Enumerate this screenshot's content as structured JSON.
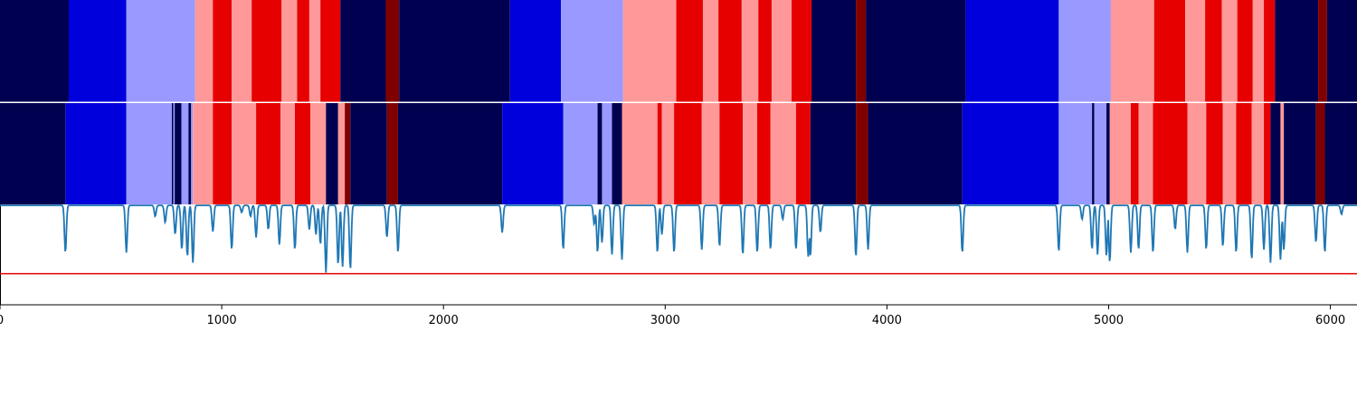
{
  "chart_data": {
    "type": "heatmap",
    "title": "",
    "xlabel": "",
    "ylabel": "",
    "xlim": [
      0,
      6120
    ],
    "x_ticks": [
      0,
      1000,
      2000,
      3000,
      4000,
      5000,
      6000
    ],
    "x_tick_labels": [
      "0",
      "1000",
      "2000",
      "3000",
      "4000",
      "5000",
      "6000"
    ],
    "grid": false,
    "legend": "none",
    "state_colors": {
      "0": "#000050",
      "1": "#0000dd",
      "2": "#9999ff",
      "3": "#ff9999",
      "4": "#e60000",
      "5": "#800000"
    },
    "track_1_segments": [
      [
        0,
        310,
        0
      ],
      [
        310,
        570,
        1
      ],
      [
        570,
        880,
        2
      ],
      [
        880,
        960,
        3
      ],
      [
        960,
        1045,
        4
      ],
      [
        1045,
        1135,
        3
      ],
      [
        1135,
        1270,
        4
      ],
      [
        1270,
        1340,
        3
      ],
      [
        1340,
        1395,
        4
      ],
      [
        1395,
        1445,
        3
      ],
      [
        1445,
        1535,
        4
      ],
      [
        1535,
        1740,
        0
      ],
      [
        1740,
        1800,
        5
      ],
      [
        1800,
        2300,
        0
      ],
      [
        2300,
        2530,
        1
      ],
      [
        2530,
        2810,
        2
      ],
      [
        2810,
        3050,
        3
      ],
      [
        3050,
        3170,
        4
      ],
      [
        3170,
        3240,
        3
      ],
      [
        3240,
        3345,
        4
      ],
      [
        3345,
        3420,
        3
      ],
      [
        3420,
        3480,
        4
      ],
      [
        3480,
        3570,
        3
      ],
      [
        3570,
        3660,
        4
      ],
      [
        3660,
        3860,
        0
      ],
      [
        3860,
        3905,
        5
      ],
      [
        3905,
        4355,
        0
      ],
      [
        4355,
        4775,
        1
      ],
      [
        4775,
        5010,
        2
      ],
      [
        5010,
        5205,
        3
      ],
      [
        5205,
        5345,
        4
      ],
      [
        5345,
        5435,
        3
      ],
      [
        5435,
        5510,
        4
      ],
      [
        5510,
        5580,
        3
      ],
      [
        5580,
        5650,
        4
      ],
      [
        5650,
        5700,
        3
      ],
      [
        5700,
        5750,
        4
      ],
      [
        5750,
        5945,
        0
      ],
      [
        5945,
        5985,
        5
      ],
      [
        5985,
        6120,
        0
      ]
    ],
    "track_2_segments": [
      [
        0,
        295,
        0
      ],
      [
        295,
        570,
        1
      ],
      [
        570,
        775,
        2
      ],
      [
        775,
        782,
        0
      ],
      [
        782,
        788,
        2
      ],
      [
        788,
        818,
        0
      ],
      [
        818,
        850,
        2
      ],
      [
        850,
        862,
        0
      ],
      [
        862,
        870,
        2
      ],
      [
        870,
        960,
        3
      ],
      [
        960,
        1045,
        4
      ],
      [
        1045,
        1155,
        3
      ],
      [
        1155,
        1265,
        4
      ],
      [
        1265,
        1330,
        3
      ],
      [
        1330,
        1400,
        4
      ],
      [
        1400,
        1470,
        3
      ],
      [
        1470,
        1525,
        0
      ],
      [
        1525,
        1555,
        3
      ],
      [
        1555,
        1580,
        5
      ],
      [
        1580,
        1745,
        0
      ],
      [
        1745,
        1795,
        5
      ],
      [
        1795,
        2265,
        0
      ],
      [
        2265,
        2540,
        1
      ],
      [
        2540,
        2695,
        2
      ],
      [
        2695,
        2715,
        0
      ],
      [
        2715,
        2760,
        2
      ],
      [
        2760,
        2805,
        0
      ],
      [
        2805,
        2965,
        3
      ],
      [
        2965,
        2985,
        4
      ],
      [
        2985,
        3040,
        3
      ],
      [
        3040,
        3165,
        4
      ],
      [
        3165,
        3245,
        3
      ],
      [
        3245,
        3350,
        4
      ],
      [
        3350,
        3415,
        3
      ],
      [
        3415,
        3475,
        4
      ],
      [
        3475,
        3590,
        3
      ],
      [
        3590,
        3655,
        4
      ],
      [
        3655,
        3860,
        0
      ],
      [
        3860,
        3915,
        5
      ],
      [
        3915,
        4340,
        0
      ],
      [
        4340,
        4775,
        1
      ],
      [
        4775,
        4925,
        2
      ],
      [
        4925,
        4935,
        0
      ],
      [
        4935,
        4990,
        2
      ],
      [
        4990,
        5005,
        0
      ],
      [
        5005,
        5100,
        3
      ],
      [
        5100,
        5135,
        4
      ],
      [
        5135,
        5200,
        3
      ],
      [
        5200,
        5355,
        4
      ],
      [
        5355,
        5440,
        3
      ],
      [
        5440,
        5515,
        4
      ],
      [
        5515,
        5575,
        3
      ],
      [
        5575,
        5645,
        4
      ],
      [
        5645,
        5700,
        3
      ],
      [
        5700,
        5730,
        4
      ],
      [
        5730,
        5775,
        0
      ],
      [
        5775,
        5790,
        3
      ],
      [
        5790,
        5935,
        0
      ],
      [
        5935,
        5975,
        5
      ],
      [
        5975,
        6120,
        0
      ]
    ],
    "line_series": {
      "color": "#1f77b4",
      "ylim": [
        0,
        1
      ],
      "baseline": 0.99,
      "dips": [
        [
          295,
          0.52
        ],
        [
          570,
          0.52
        ],
        [
          700,
          0.88
        ],
        [
          745,
          0.82
        ],
        [
          790,
          0.7
        ],
        [
          820,
          0.55
        ],
        [
          845,
          0.48
        ],
        [
          870,
          0.42
        ],
        [
          960,
          0.73
        ],
        [
          1045,
          0.55
        ],
        [
          1090,
          0.92
        ],
        [
          1130,
          0.88
        ],
        [
          1155,
          0.67
        ],
        [
          1210,
          0.75
        ],
        [
          1260,
          0.6
        ],
        [
          1330,
          0.55
        ],
        [
          1395,
          0.75
        ],
        [
          1425,
          0.7
        ],
        [
          1445,
          0.6
        ],
        [
          1470,
          0.32
        ],
        [
          1525,
          0.4
        ],
        [
          1545,
          0.38
        ],
        [
          1580,
          0.35
        ],
        [
          1745,
          0.67
        ],
        [
          1795,
          0.52
        ],
        [
          2265,
          0.72
        ],
        [
          2540,
          0.55
        ],
        [
          2680,
          0.8
        ],
        [
          2695,
          0.52
        ],
        [
          2715,
          0.62
        ],
        [
          2760,
          0.5
        ],
        [
          2805,
          0.45
        ],
        [
          2965,
          0.52
        ],
        [
          2985,
          0.7
        ],
        [
          3040,
          0.52
        ],
        [
          3165,
          0.55
        ],
        [
          3245,
          0.58
        ],
        [
          3350,
          0.5
        ],
        [
          3415,
          0.52
        ],
        [
          3475,
          0.55
        ],
        [
          3530,
          0.85
        ],
        [
          3590,
          0.55
        ],
        [
          3645,
          0.48
        ],
        [
          3655,
          0.48
        ],
        [
          3700,
          0.72
        ],
        [
          3860,
          0.48
        ],
        [
          3915,
          0.55
        ],
        [
          4340,
          0.52
        ],
        [
          4775,
          0.53
        ],
        [
          4880,
          0.85
        ],
        [
          4925,
          0.55
        ],
        [
          4950,
          0.5
        ],
        [
          4990,
          0.48
        ],
        [
          5005,
          0.42
        ],
        [
          5100,
          0.52
        ],
        [
          5135,
          0.55
        ],
        [
          5200,
          0.52
        ],
        [
          5300,
          0.75
        ],
        [
          5355,
          0.52
        ],
        [
          5440,
          0.55
        ],
        [
          5515,
          0.58
        ],
        [
          5575,
          0.52
        ],
        [
          5645,
          0.45
        ],
        [
          5700,
          0.55
        ],
        [
          5730,
          0.42
        ],
        [
          5775,
          0.45
        ],
        [
          5790,
          0.55
        ],
        [
          5935,
          0.62
        ],
        [
          5975,
          0.52
        ],
        [
          6050,
          0.9
        ]
      ]
    },
    "threshold_line": {
      "value": 0.31,
      "color": "#e60000"
    }
  }
}
